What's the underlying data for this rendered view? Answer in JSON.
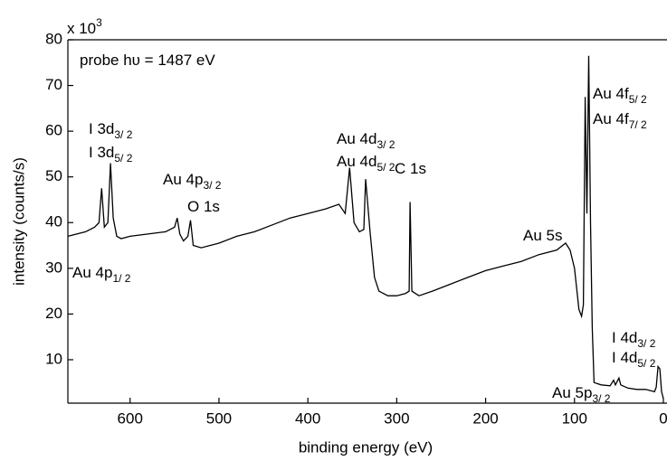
{
  "chart_data": {
    "type": "line",
    "xlabel": "binding energy (eV)",
    "ylabel": "intensity (counts/s)",
    "y_multiplier": {
      "base": "x 10",
      "exponent": "3"
    },
    "xlim": [
      670,
      0
    ],
    "ylim": [
      0.5,
      80
    ],
    "xticks": [
      600,
      500,
      400,
      300,
      200,
      100,
      0
    ],
    "yticks": [
      10,
      20,
      30,
      40,
      50,
      60,
      70,
      80
    ],
    "x": [
      670,
      660,
      650,
      640,
      635,
      632,
      629,
      625,
      622,
      619,
      615,
      610,
      600,
      580,
      560,
      550,
      547,
      544,
      540,
      535,
      532,
      529,
      520,
      500,
      480,
      460,
      440,
      420,
      400,
      380,
      365,
      358,
      353,
      348,
      342,
      337,
      335,
      330,
      325,
      320,
      310,
      300,
      290,
      286,
      285,
      283,
      275,
      260,
      240,
      220,
      200,
      180,
      160,
      140,
      120,
      110,
      105,
      100,
      95,
      92,
      90,
      88,
      86,
      84,
      82,
      80,
      78,
      70,
      60,
      56,
      54,
      50,
      48,
      40,
      30,
      20,
      10,
      8,
      6,
      4,
      2,
      0
    ],
    "values": [
      37,
      37.5,
      38,
      39,
      40,
      47.5,
      39,
      40,
      53,
      41,
      37,
      36.5,
      37,
      37.5,
      38,
      39,
      41,
      37.5,
      36,
      37,
      40.5,
      35,
      34.5,
      35.5,
      37,
      38,
      39.5,
      41,
      42,
      43,
      44,
      42,
      52,
      40,
      38,
      38.5,
      49.5,
      38,
      28,
      25,
      24,
      24,
      24.5,
      25,
      44.5,
      25,
      24,
      25,
      26.5,
      28,
      29.5,
      30.5,
      31.5,
      33,
      34,
      35.5,
      34,
      30,
      21,
      19.5,
      22,
      67.5,
      42,
      76.5,
      40,
      17,
      5,
      4.5,
      4.3,
      5.5,
      4.5,
      6,
      4.5,
      3.8,
      3.5,
      3.5,
      3,
      4,
      8.5,
      8,
      3,
      1.5
    ],
    "color": "#000000",
    "annotations": [
      {
        "text": "probe hυ = 1487 eV"
      },
      {
        "text": "I 3d",
        "sub": "3/ 2"
      },
      {
        "text": "I 3d",
        "sub": "5/ 2"
      },
      {
        "text": "Au 4p",
        "sub": "1/ 2"
      },
      {
        "text": "Au 4p",
        "sub": "3/ 2"
      },
      {
        "text": "O 1s"
      },
      {
        "text": "Au 4d",
        "sub": "3/ 2"
      },
      {
        "text": "Au 4d",
        "sub": "5/ 2"
      },
      {
        "text": "C 1s"
      },
      {
        "text": "Au 5s"
      },
      {
        "text": "Au 4f",
        "sub": "5/ 2"
      },
      {
        "text": "Au 4f",
        "sub": "7/ 2"
      },
      {
        "text": "I 4d",
        "sub": "3/ 2"
      },
      {
        "text": "I 4d",
        "sub": "5/ 2"
      },
      {
        "text": "Au 5p",
        "sub": "3/ 2"
      }
    ]
  }
}
